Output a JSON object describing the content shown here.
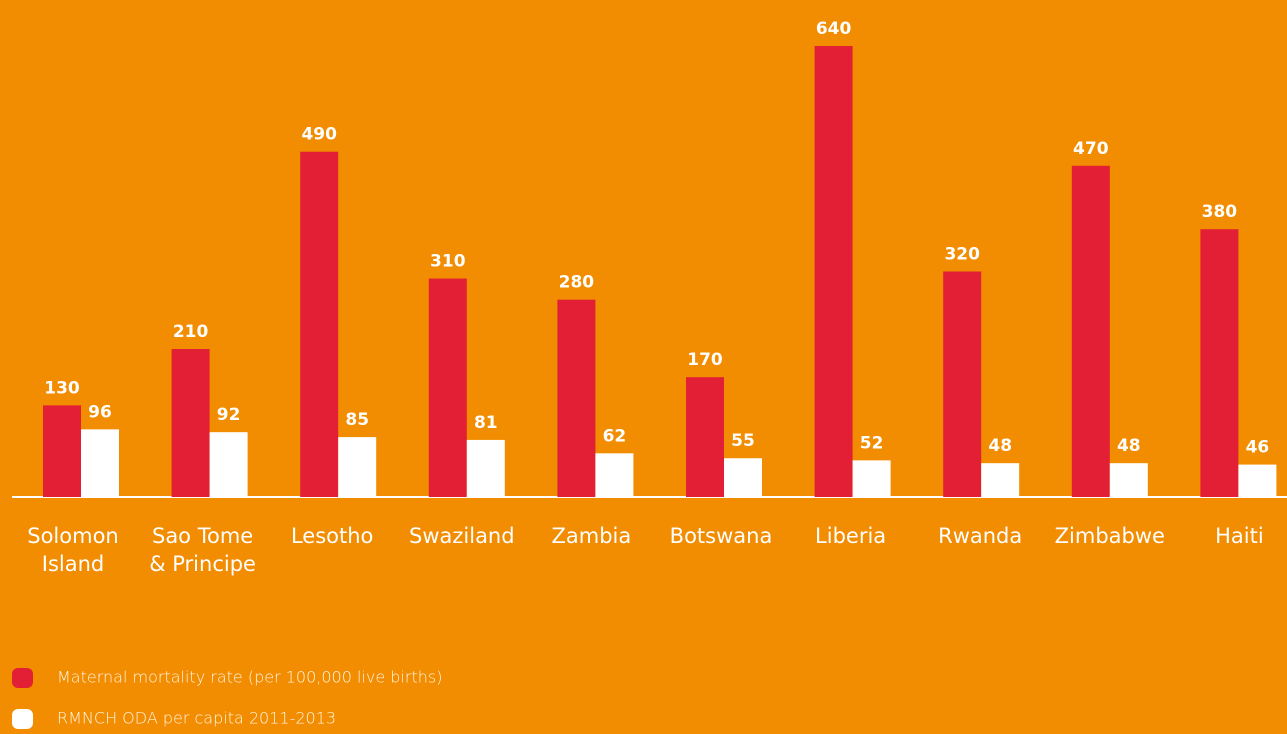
{
  "chart_data": {
    "type": "bar",
    "categories": [
      "Solomon\nIsland",
      "Sao Tome\n& Principe",
      "Lesotho",
      "Swaziland",
      "Zambia",
      "Botswana",
      "Liberia",
      "Rwanda",
      "Zimbabwe",
      "Haiti"
    ],
    "series": [
      {
        "name": "Maternal mortality rate (per 100,000 live births)",
        "color": "#e31f36",
        "values": [
          130,
          210,
          490,
          310,
          280,
          170,
          640,
          320,
          470,
          380
        ]
      },
      {
        "name": "RMNCH ODA per capita 2011-2013",
        "color": "#ffffff",
        "values": [
          96,
          92,
          85,
          81,
          62,
          55,
          52,
          48,
          48,
          46
        ]
      }
    ],
    "ylim": [
      0,
      640
    ]
  }
}
